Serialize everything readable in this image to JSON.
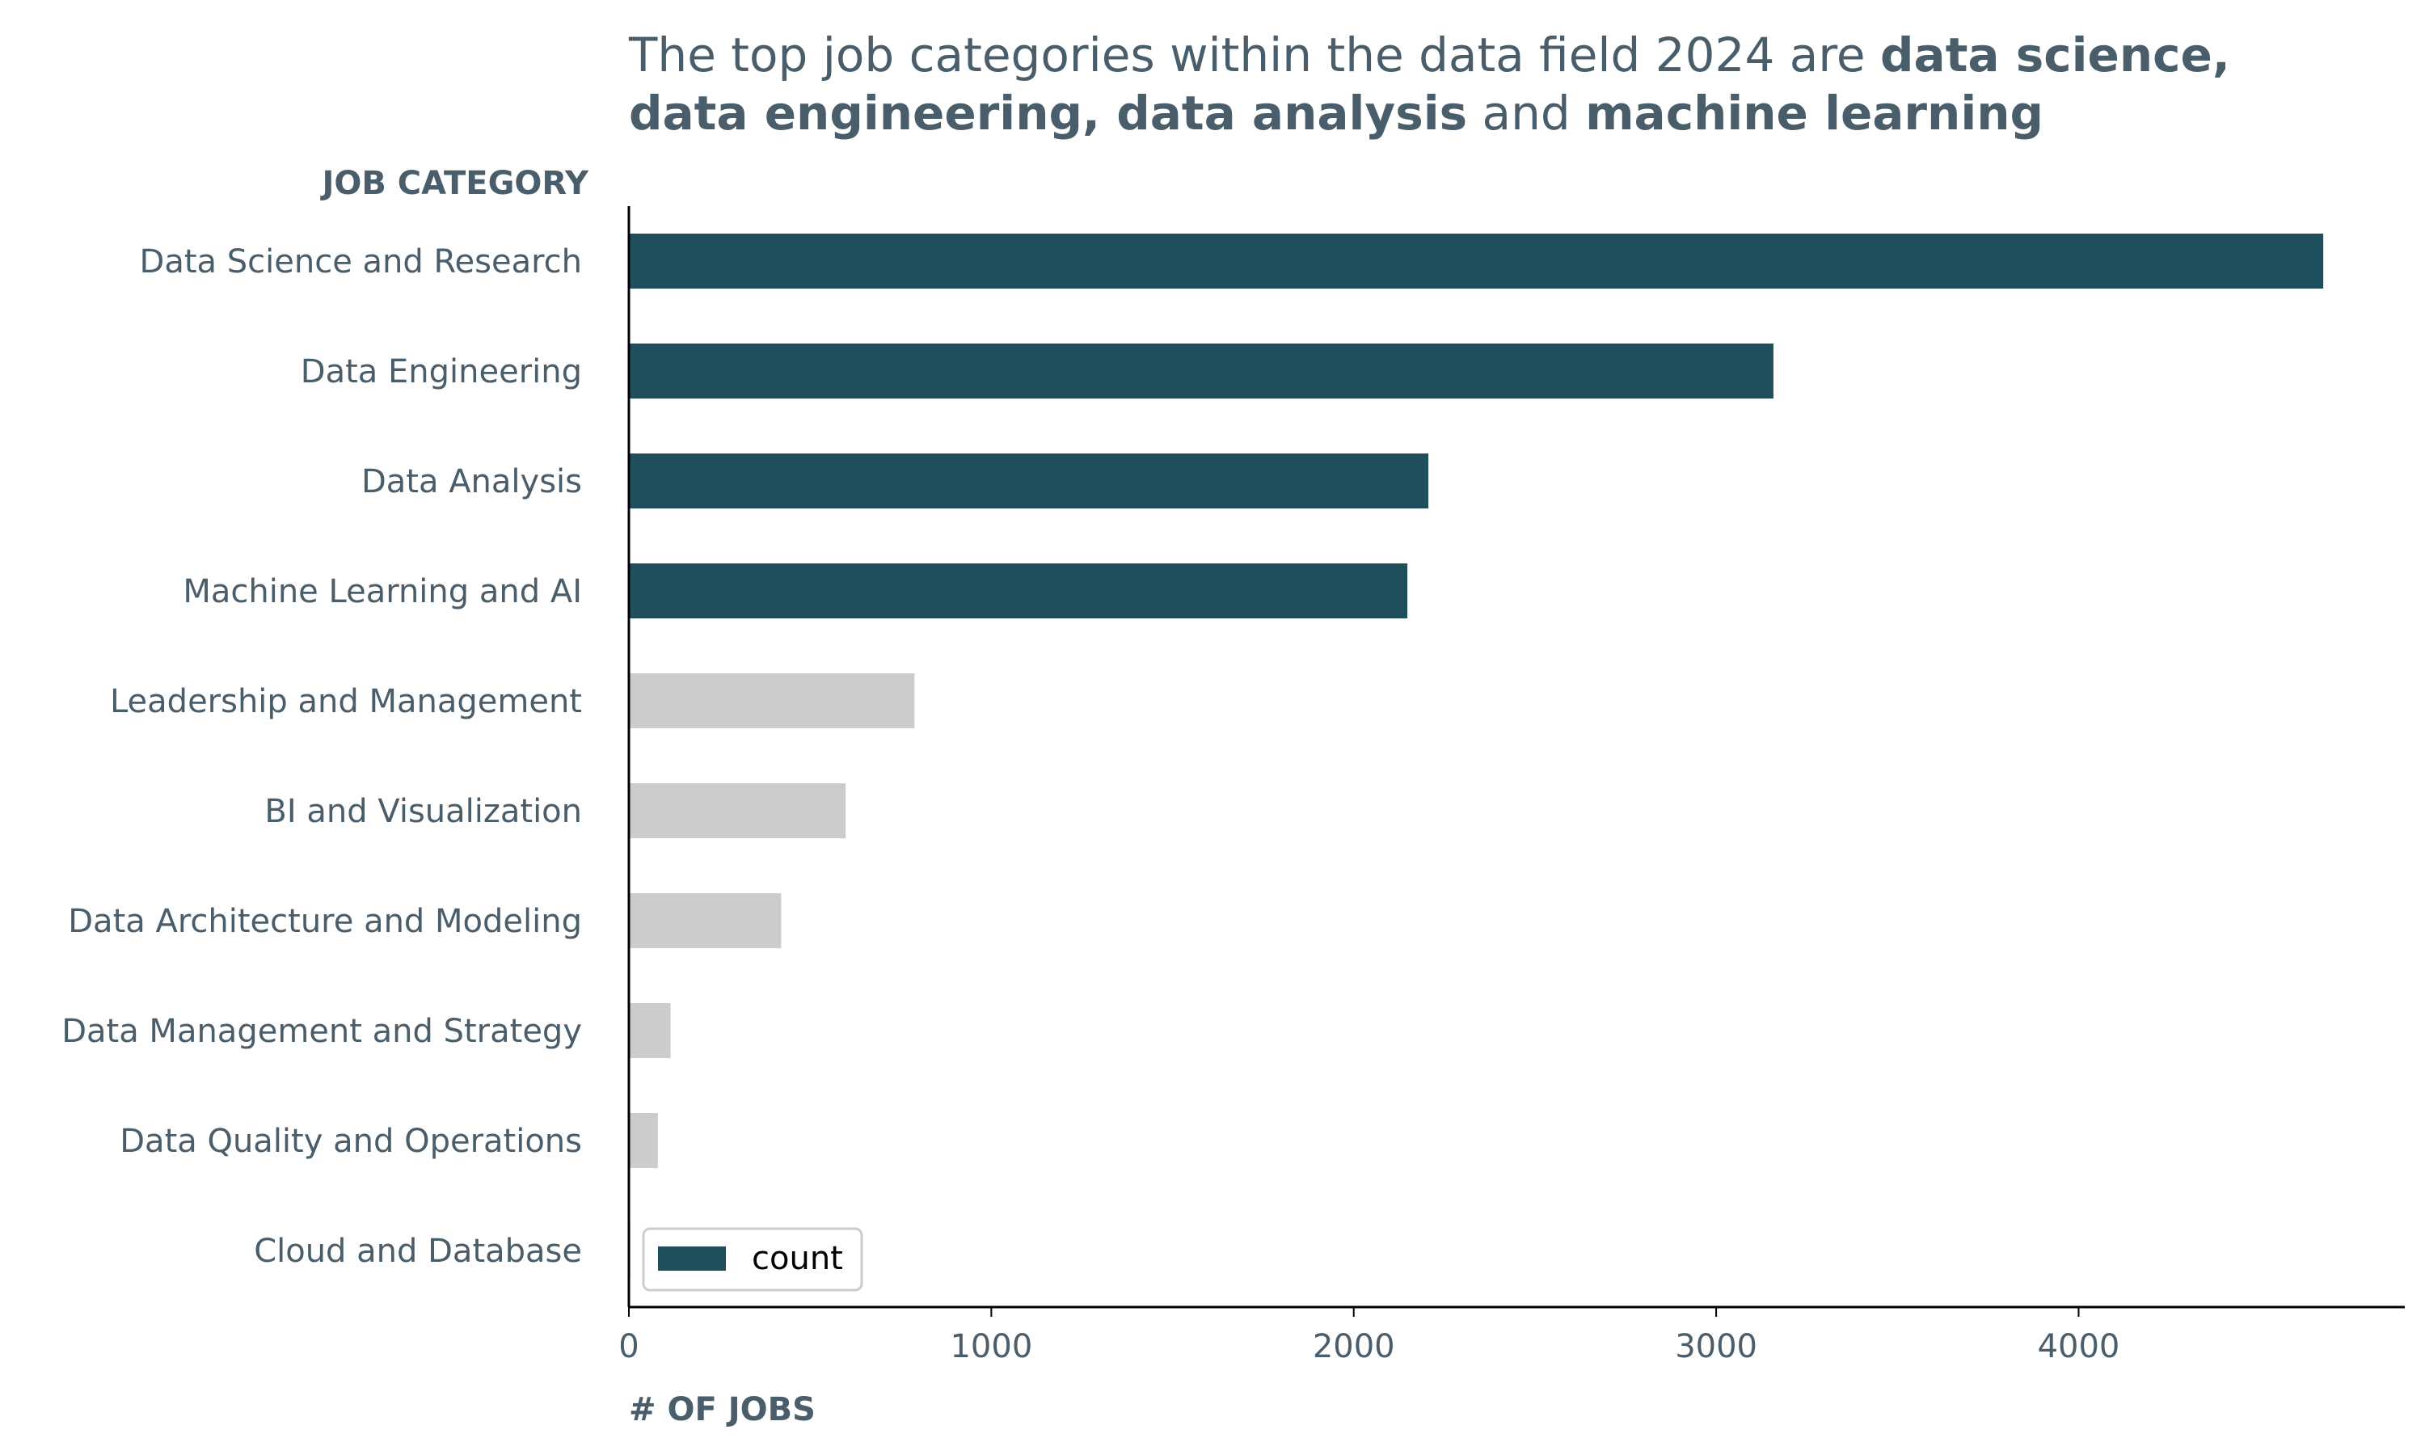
{
  "title": {
    "line1_normal": "The top job categories within the data field 2024 are ",
    "line1_bold": "data science,",
    "line2_bold_a": "data engineering,",
    "line2_bold_b": " data analysis",
    "line2_normal": " and ",
    "line2_bold_c": "machine learning"
  },
  "colors": {
    "highlight": "#1f4e5c",
    "muted": "#cccccc",
    "text": "#4a5d6a"
  },
  "chart_data": {
    "type": "bar",
    "orientation": "horizontal",
    "ylabel": "JOB CATEGORY",
    "xlabel": "# OF JOBS",
    "xlim": [
      0,
      4900
    ],
    "xticks": [
      0,
      1000,
      2000,
      3000,
      4000
    ],
    "categories": [
      "Data Science and Research",
      "Data Engineering",
      "Data Analysis",
      "Machine Learning and AI",
      "Leadership and Management",
      "BI and Visualization",
      "Data Architecture and Modeling",
      "Data Management and Strategy",
      "Data Quality and Operations",
      "Cloud and Database"
    ],
    "series": [
      {
        "name": "count",
        "values": [
          4675,
          3158,
          2206,
          2148,
          788,
          598,
          420,
          115,
          80,
          4
        ]
      }
    ],
    "highlighted_count": 4,
    "legend": {
      "position": "bottom-left",
      "label": "count"
    },
    "grid": false
  }
}
